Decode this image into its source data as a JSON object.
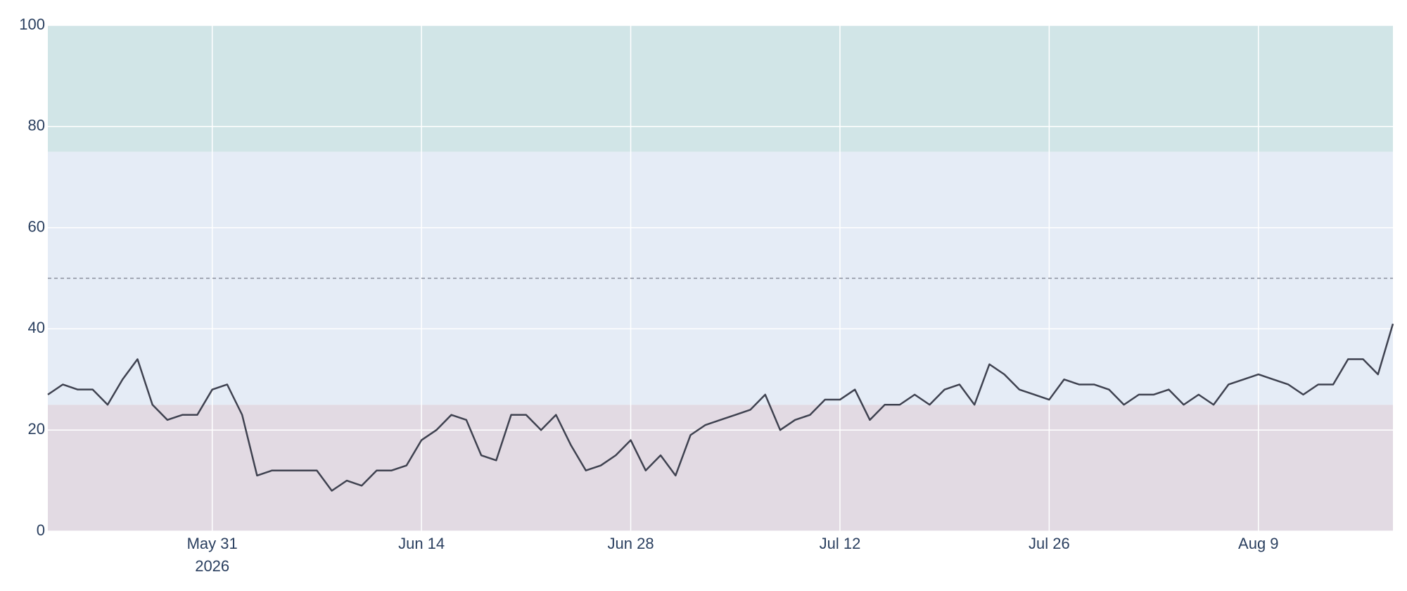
{
  "chart_data": {
    "type": "line",
    "x": [
      "2026-05-20",
      "2026-05-21",
      "2026-05-22",
      "2026-05-23",
      "2026-05-24",
      "2026-05-25",
      "2026-05-26",
      "2026-05-27",
      "2026-05-28",
      "2026-05-29",
      "2026-05-30",
      "2026-05-31",
      "2026-06-01",
      "2026-06-02",
      "2026-06-03",
      "2026-06-04",
      "2026-06-05",
      "2026-06-06",
      "2026-06-07",
      "2026-06-08",
      "2026-06-09",
      "2026-06-10",
      "2026-06-11",
      "2026-06-12",
      "2026-06-13",
      "2026-06-14",
      "2026-06-15",
      "2026-06-16",
      "2026-06-17",
      "2026-06-18",
      "2026-06-19",
      "2026-06-20",
      "2026-06-21",
      "2026-06-22",
      "2026-06-23",
      "2026-06-24",
      "2026-06-25",
      "2026-06-26",
      "2026-06-27",
      "2026-06-28",
      "2026-06-29",
      "2026-06-30",
      "2026-07-01",
      "2026-07-02",
      "2026-07-03",
      "2026-07-04",
      "2026-07-05",
      "2026-07-06",
      "2026-07-07",
      "2026-07-08",
      "2026-07-09",
      "2026-07-10",
      "2026-07-11",
      "2026-07-12",
      "2026-07-13",
      "2026-07-14",
      "2026-07-15",
      "2026-07-16",
      "2026-07-17",
      "2026-07-18",
      "2026-07-19",
      "2026-07-20",
      "2026-07-21",
      "2026-07-22",
      "2026-07-23",
      "2026-07-24",
      "2026-07-25",
      "2026-07-26",
      "2026-07-27",
      "2026-07-28",
      "2026-07-29",
      "2026-07-30",
      "2026-07-31",
      "2026-08-01",
      "2026-08-02",
      "2026-08-03",
      "2026-08-04",
      "2026-08-05",
      "2026-08-06",
      "2026-08-07",
      "2026-08-08",
      "2026-08-09",
      "2026-08-10",
      "2026-08-11",
      "2026-08-12",
      "2026-08-13",
      "2026-08-14",
      "2026-08-15",
      "2026-08-16",
      "2026-08-17",
      "2026-08-18"
    ],
    "series": [
      {
        "color": "#3f4250",
        "values": [
          27,
          29,
          28,
          28,
          25,
          30,
          34,
          25,
          22,
          23,
          23,
          28,
          29,
          23,
          11,
          12,
          12,
          12,
          12,
          8,
          10,
          9,
          12,
          12,
          13,
          18,
          20,
          23,
          22,
          15,
          14,
          23,
          23,
          20,
          23,
          17,
          12,
          13,
          15,
          18,
          12,
          15,
          11,
          19,
          21,
          22,
          23,
          24,
          27,
          20,
          22,
          23,
          26,
          26,
          28,
          22,
          25,
          25,
          27,
          25,
          28,
          29,
          25,
          33,
          31,
          28,
          27,
          26,
          30,
          29,
          29,
          28,
          25,
          27,
          27,
          28,
          25,
          27,
          25,
          29,
          30,
          31,
          30,
          29,
          27,
          29,
          29,
          34,
          34,
          31,
          41
        ]
      }
    ],
    "xlim": [
      "2026-05-20",
      "2026-08-18"
    ],
    "xticks": [
      {
        "value": "2026-05-31",
        "label": [
          "May 31",
          "2026"
        ]
      },
      {
        "value": "2026-06-14",
        "label": [
          "Jun 14"
        ]
      },
      {
        "value": "2026-06-28",
        "label": [
          "Jun 28"
        ]
      },
      {
        "value": "2026-07-12",
        "label": [
          "Jul 12"
        ]
      },
      {
        "value": "2026-07-26",
        "label": [
          "Jul 26"
        ]
      },
      {
        "value": "2026-08-09",
        "label": [
          "Aug 9"
        ]
      }
    ],
    "ylim": [
      0,
      100
    ],
    "yticks": [
      0,
      20,
      40,
      60,
      80,
      100
    ],
    "grid": true,
    "bands": [
      {
        "range": [
          0,
          25
        ],
        "color": "#e2dae3"
      },
      {
        "range": [
          25,
          75
        ],
        "color": "#e5ecf6"
      },
      {
        "range": [
          75,
          100
        ],
        "color": "#d1e5e7"
      }
    ],
    "reference_line": {
      "value": 50,
      "color": "#8a8f9c"
    }
  }
}
